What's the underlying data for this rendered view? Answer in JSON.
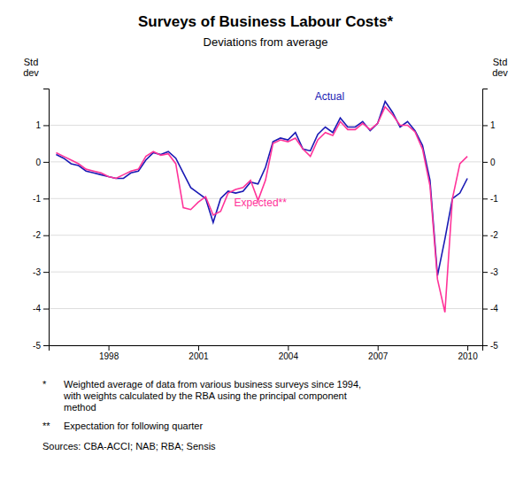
{
  "chart_data": {
    "type": "line",
    "title": "Surveys of Business Labour Costs*",
    "subtitle": "Deviations from average",
    "ylabel": "Std\ndev",
    "y2label": "Std\ndev",
    "x": [
      1996.25,
      1996.5,
      1996.75,
      1997.0,
      1997.25,
      1997.5,
      1997.75,
      1998.0,
      1998.25,
      1998.5,
      1998.75,
      1999.0,
      1999.25,
      1999.5,
      1999.75,
      2000.0,
      2000.25,
      2000.5,
      2000.75,
      2001.0,
      2001.25,
      2001.5,
      2001.75,
      2002.0,
      2002.25,
      2002.5,
      2002.75,
      2003.0,
      2003.25,
      2003.5,
      2003.75,
      2004.0,
      2004.25,
      2004.5,
      2004.75,
      2005.0,
      2005.25,
      2005.5,
      2005.75,
      2006.0,
      2006.25,
      2006.5,
      2006.75,
      2007.0,
      2007.25,
      2007.5,
      2007.75,
      2008.0,
      2008.25,
      2008.5,
      2008.75,
      2009.0,
      2009.25,
      2009.5,
      2009.75,
      2010.0
    ],
    "series": [
      {
        "color": "#1a1ab4",
        "values": [
          0.2,
          0.1,
          -0.05,
          -0.1,
          -0.25,
          -0.3,
          -0.35,
          -0.4,
          -0.45,
          -0.45,
          -0.3,
          -0.25,
          0.05,
          0.25,
          0.2,
          0.28,
          0.1,
          -0.3,
          -0.7,
          -0.85,
          -1.0,
          -1.65,
          -1.0,
          -0.8,
          -0.85,
          -0.8,
          -0.55,
          -0.6,
          -0.15,
          0.55,
          0.65,
          0.6,
          0.8,
          0.35,
          0.3,
          0.75,
          0.95,
          0.8,
          1.2,
          0.95,
          0.95,
          1.1,
          0.85,
          1.05,
          1.65,
          1.35,
          0.95,
          1.1,
          0.85,
          0.45,
          -0.5,
          -3.1,
          -2.1,
          -1.0,
          -0.85,
          -0.45
        ]
      },
      {
        "color": "#ff3399",
        "values": [
          0.25,
          0.15,
          0.05,
          -0.05,
          -0.2,
          -0.25,
          -0.3,
          -0.4,
          -0.45,
          -0.35,
          -0.25,
          -0.2,
          0.15,
          0.28,
          0.18,
          0.22,
          -0.05,
          -1.25,
          -1.3,
          -1.1,
          -0.95,
          -1.45,
          -1.35,
          -0.85,
          -0.75,
          -0.7,
          -0.5,
          -1.05,
          -0.5,
          0.5,
          0.6,
          0.55,
          0.65,
          0.35,
          0.15,
          0.6,
          0.8,
          0.72,
          1.1,
          0.88,
          0.88,
          1.05,
          0.88,
          1.05,
          1.5,
          1.28,
          1.0,
          1.0,
          0.82,
          0.35,
          -0.65,
          -3.2,
          -4.1,
          -1.0,
          -0.05,
          0.15
        ]
      }
    ],
    "annotations": [
      {
        "text": "Actual",
        "x": 2004.9,
        "y": 1.68,
        "color": "#1a1ab4"
      },
      {
        "text": "Expected**",
        "x": 2002.2,
        "y": -1.2,
        "color": "#ff3399"
      }
    ],
    "xlim": [
      1996.0,
      2010.5
    ],
    "xticks": [
      1998,
      2001,
      2004,
      2007,
      2010
    ],
    "ylim": [
      -5,
      2
    ],
    "yticks": [
      -5,
      -4,
      -3,
      -2,
      -1,
      0,
      1
    ],
    "y2lim": [
      -5,
      2
    ],
    "y2ticks": [
      -5,
      -4,
      -3,
      -2,
      -1,
      0,
      1
    ],
    "grid": true,
    "footnotes": [
      {
        "mark": "*",
        "text": "Weighted average of data from various business surveys since 1994,\nwith weights calculated by the RBA using the principal component\nmethod"
      },
      {
        "mark": "**",
        "text": "Expectation for following quarter"
      }
    ],
    "source": "Sources: CBA-ACCI; NAB; RBA; Sensis"
  }
}
